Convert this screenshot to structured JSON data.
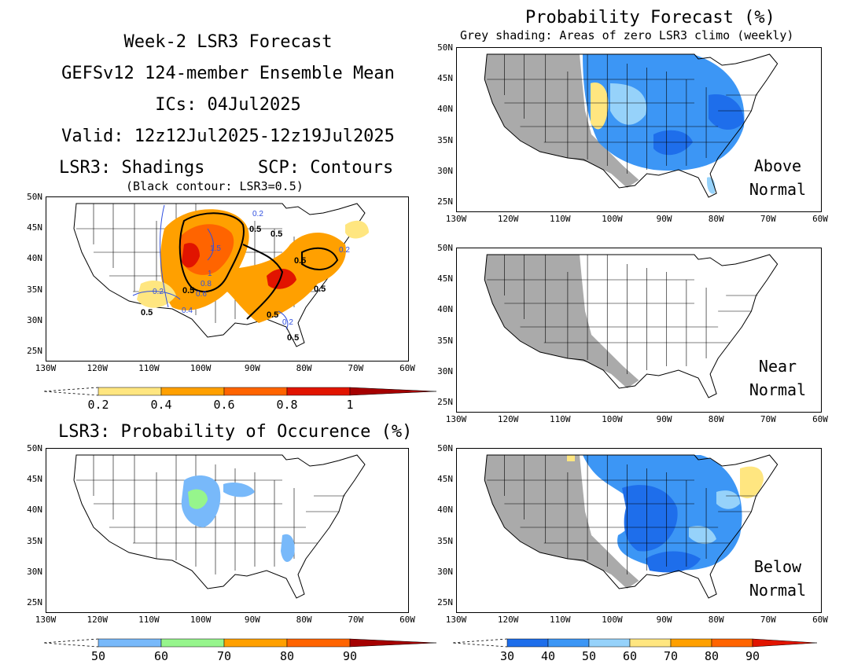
{
  "header": {
    "line1": "Week-2 LSR3 Forecast",
    "line2": "GEFSv12 124-member Ensemble Mean",
    "line3": "ICs: 04Jul2025",
    "line4": "Valid: 12z12Jul2025-12z19Jul2025",
    "line5_left": "LSR3: Shadings",
    "line5_right": "SCP: Contours",
    "note": "(Black contour: LSR3=0.5)"
  },
  "right_header": {
    "title": "Probability Forecast (%)",
    "subtitle": "Grey shading: Areas of zero LSR3 climo (weekly)"
  },
  "occurrence_title": "LSR3: Probability of Occurence (%)",
  "axes": {
    "lat_labels": [
      "50N",
      "45N",
      "40N",
      "35N",
      "30N",
      "25N"
    ],
    "lon_labels": [
      "130W",
      "120W",
      "110W",
      "100W",
      "90W",
      "80W",
      "70W",
      "60W"
    ]
  },
  "panels": {
    "above": {
      "line1": "Above",
      "line2": "Normal"
    },
    "near": {
      "line1": "Near",
      "line2": "Normal"
    },
    "below": {
      "line1": "Below",
      "line2": "Normal"
    }
  },
  "contour_labels": {
    "black": [
      "0.5",
      "0.5",
      "0.5",
      "0.5",
      "0.5",
      "0.5",
      "0.5",
      "0.5"
    ],
    "blue": [
      "1.5",
      "1",
      "0.8",
      "0.6",
      "0.2",
      "0.4",
      "0.2",
      "0.2",
      "0.2"
    ]
  },
  "colorbars": {
    "lsr3": {
      "labels": [
        "0.2",
        "0.4",
        "0.6",
        "0.8",
        "1"
      ],
      "colors": [
        "#ffe680",
        "#ffa000",
        "#ff6400",
        "#e11400",
        "#a50000"
      ]
    },
    "occurrence": {
      "labels": [
        "50",
        "60",
        "70",
        "80",
        "90"
      ],
      "colors": [
        "#78b9fa",
        "#96f58c",
        "#ffa000",
        "#ff6400",
        "#a50000"
      ]
    },
    "probability": {
      "labels": [
        "30",
        "40",
        "50",
        "60",
        "70",
        "80",
        "90"
      ],
      "colors": [
        "#1e6eeb",
        "#3c96f5",
        "#96d2fa",
        "#ffe680",
        "#ffa000",
        "#ff6400",
        "#e11400"
      ]
    }
  },
  "colors": {
    "grey_mask": "#aaaaaa",
    "border": "#000000",
    "contour_blue": "#3050e0"
  }
}
